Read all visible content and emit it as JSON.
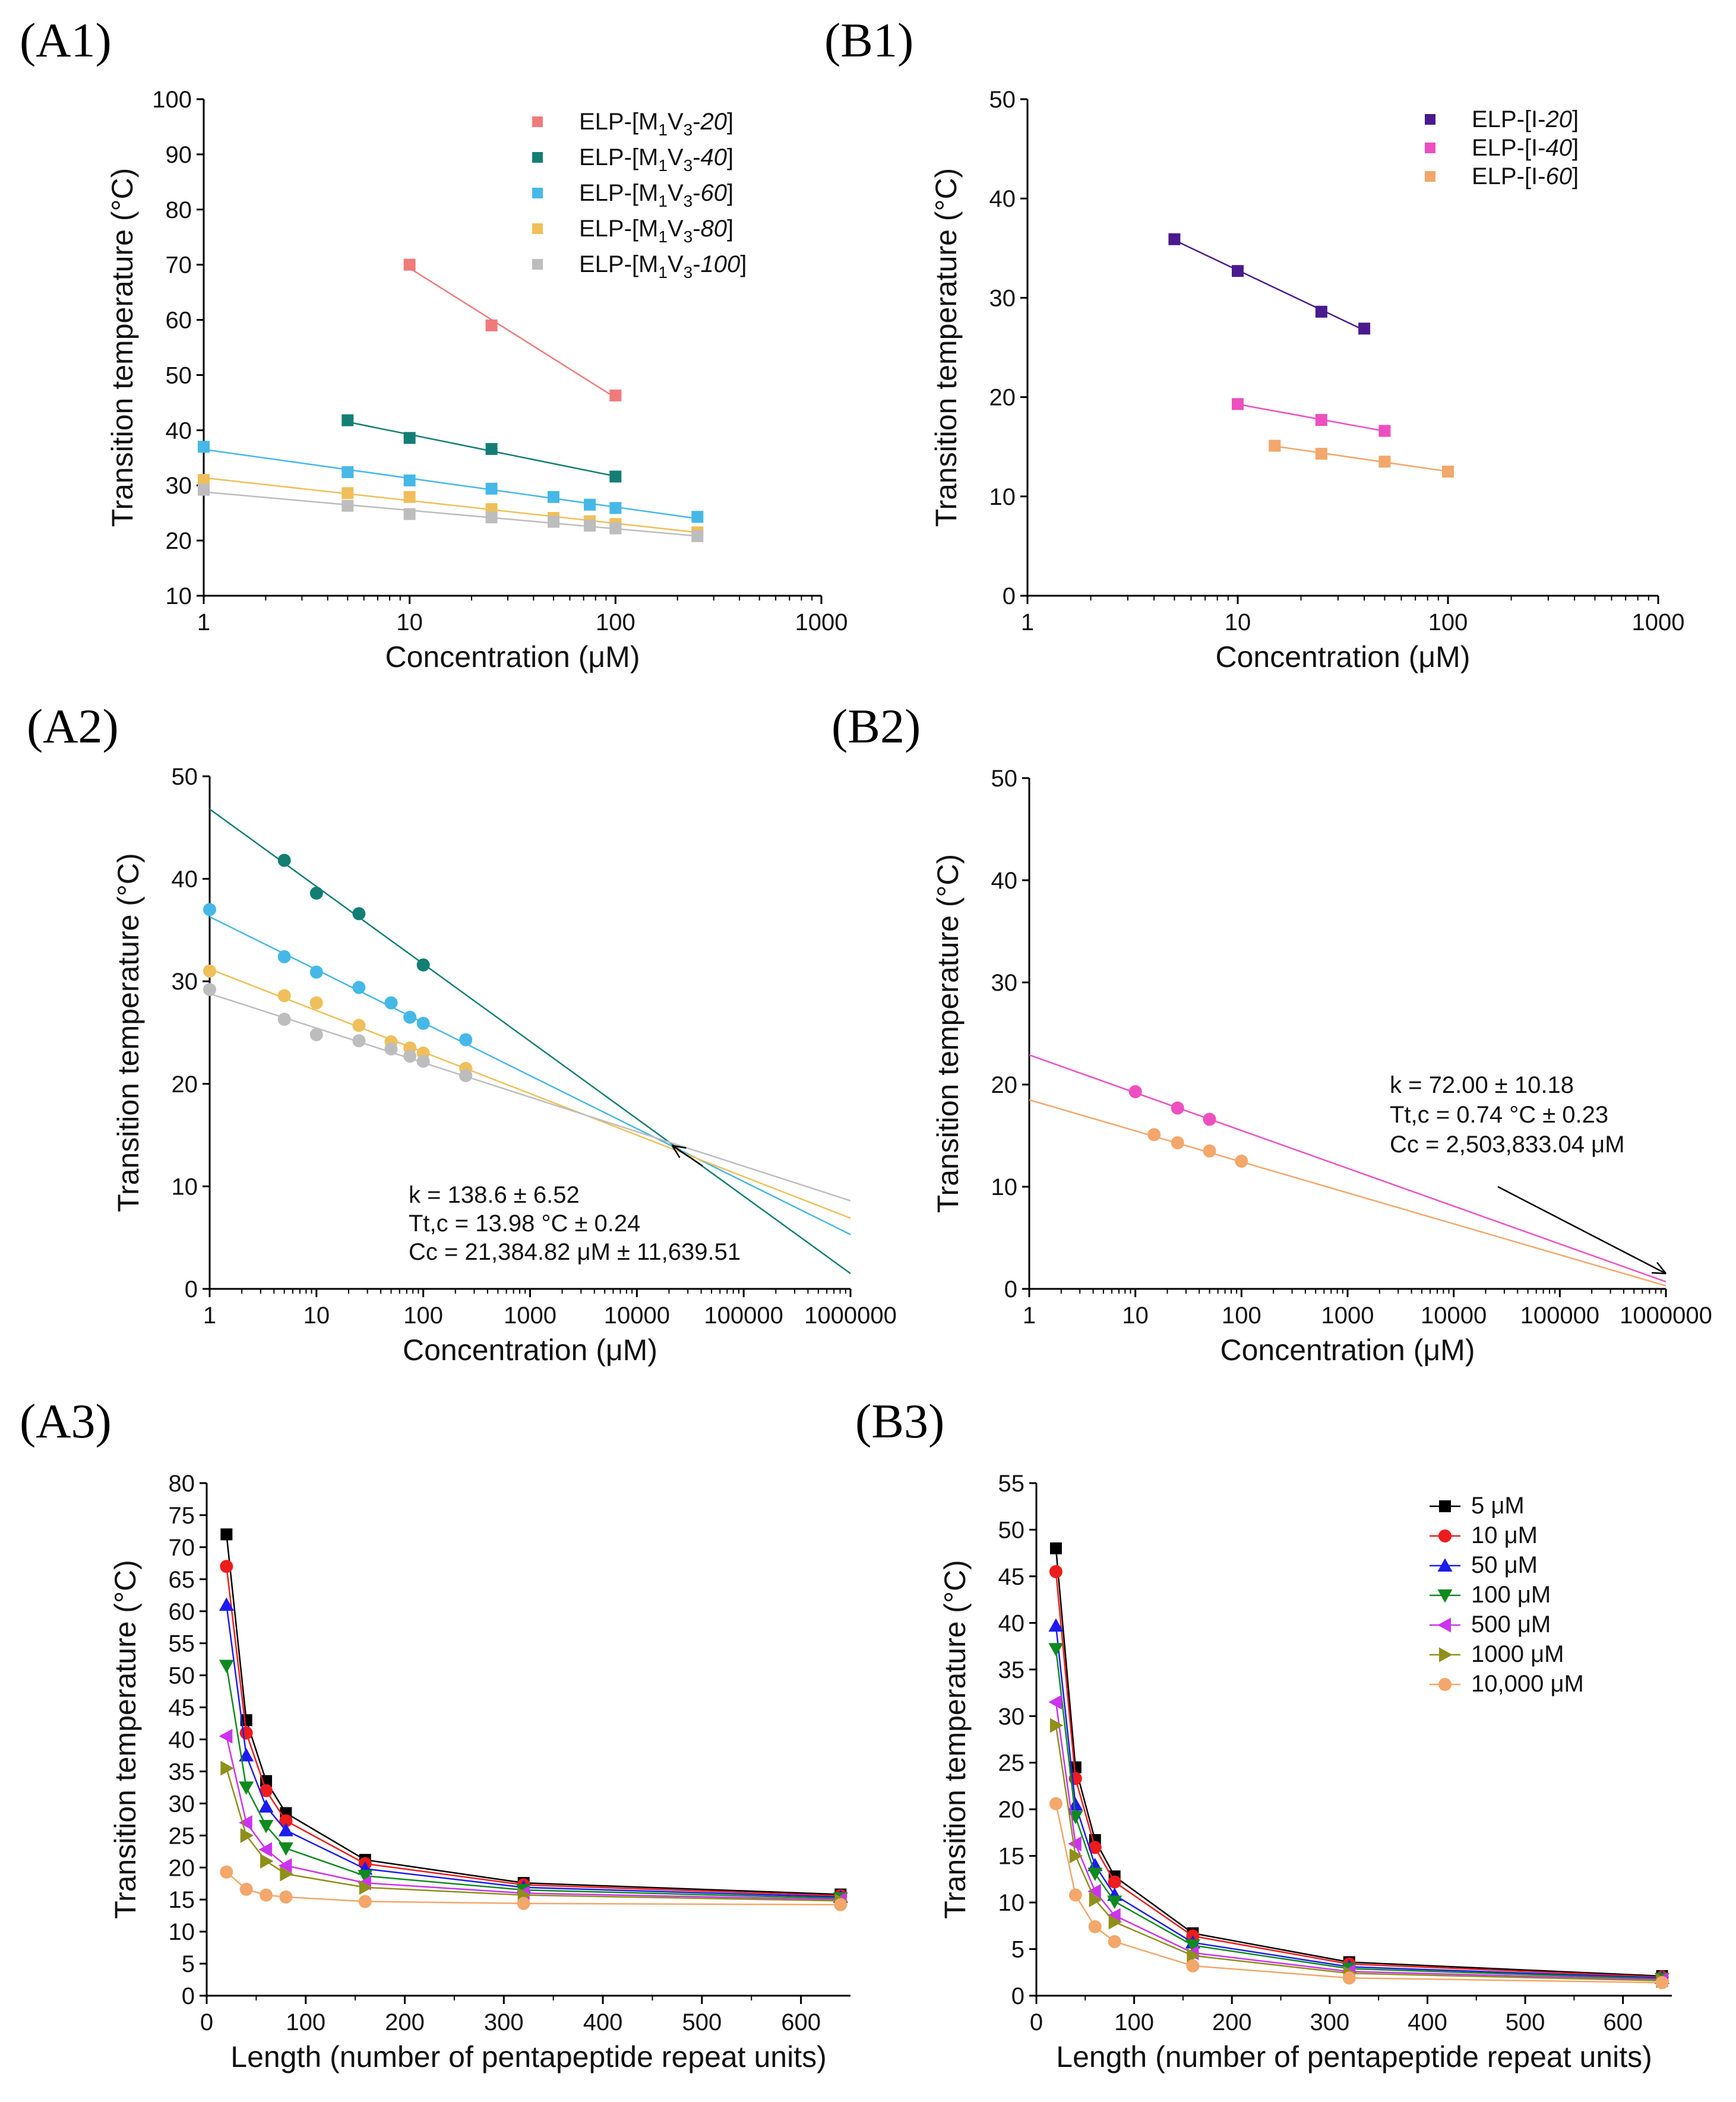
{
  "chart_data": [
    {
      "id": "A1",
      "panel_label": "(A1)",
      "type": "scatter",
      "xscale": "log",
      "xlim": [
        1,
        1000
      ],
      "ylim": [
        10,
        100
      ],
      "xticks": [
        1,
        10,
        100,
        1000
      ],
      "xtick_labels": [
        "1",
        "10",
        "100",
        "1000"
      ],
      "yticks": [
        10,
        20,
        30,
        40,
        50,
        60,
        70,
        80,
        90,
        100
      ],
      "xlabel": "Concentration (μM)",
      "ylabel": "Transition temperature (°C)",
      "legend_position": "top-right",
      "series": [
        {
          "name": "ELP-[M1V3-20]",
          "legend": [
            "ELP-[M",
            "1",
            "V",
            "3",
            "-",
            "20",
            "]"
          ],
          "color": "#f07b7b",
          "marker": "square",
          "fit": "line",
          "x": [
            10,
            25,
            100
          ],
          "y": [
            70,
            59,
            46.3
          ]
        },
        {
          "name": "ELP-[M1V3-40]",
          "legend": [
            "ELP-[M",
            "1",
            "V",
            "3",
            "-",
            "40",
            "]"
          ],
          "color": "#127e74",
          "marker": "square",
          "fit": "line",
          "x": [
            5,
            10,
            25,
            100
          ],
          "y": [
            41.8,
            38.6,
            36.6,
            31.6
          ]
        },
        {
          "name": "ELP-[M1V3-60]",
          "legend": [
            "ELP-[M",
            "1",
            "V",
            "3",
            "-",
            "60",
            "]"
          ],
          "color": "#46b8e8",
          "marker": "square",
          "fit": "line",
          "x": [
            1,
            5,
            10,
            25,
            50,
            75,
            100,
            250
          ],
          "y": [
            37,
            32.4,
            30.9,
            29.4,
            27.9,
            26.5,
            25.9,
            24.3
          ]
        },
        {
          "name": "ELP-[M1V3-80]",
          "legend": [
            "ELP-[M",
            "1",
            "V",
            "3",
            "-",
            "80",
            "]"
          ],
          "color": "#f0bf5a",
          "marker": "square",
          "fit": "line",
          "x": [
            1,
            5,
            10,
            25,
            50,
            75,
            100,
            250
          ],
          "y": [
            31,
            28.6,
            27.9,
            25.7,
            24.1,
            23.5,
            23,
            21.5
          ]
        },
        {
          "name": "ELP-[M1V3-100]",
          "legend": [
            "ELP-[M",
            "1",
            "V",
            "3",
            "-",
            "100",
            "]"
          ],
          "color": "#bdbdbd",
          "marker": "square",
          "fit": "line",
          "x": [
            1,
            5,
            10,
            25,
            50,
            75,
            100,
            250
          ],
          "y": [
            29.2,
            26.3,
            24.8,
            24.2,
            23.4,
            22.7,
            22.2,
            20.8
          ]
        }
      ]
    },
    {
      "id": "B1",
      "panel_label": "(B1)",
      "type": "scatter",
      "xscale": "log",
      "xlim": [
        1,
        1000
      ],
      "ylim": [
        0,
        50
      ],
      "xticks": [
        1,
        10,
        100,
        1000
      ],
      "xtick_labels": [
        "1",
        "10",
        "100",
        "1000"
      ],
      "yticks": [
        0,
        10,
        20,
        30,
        40,
        50
      ],
      "xlabel": "Concentration (μM)",
      "ylabel": "Transition temperature (°C)",
      "legend_position": "top-right",
      "series": [
        {
          "name": "ELP-[I-20]",
          "legend": [
            "ELP-[I-",
            "20",
            "]"
          ],
          "color": "#4b1a8e",
          "marker": "square",
          "fit": "line",
          "x": [
            5,
            10,
            25,
            40
          ],
          "y": [
            35.9,
            32.7,
            28.6,
            26.9
          ]
        },
        {
          "name": "ELP-[I-40]",
          "legend": [
            "ELP-[I-",
            "40",
            "]"
          ],
          "color": "#ee4fc0",
          "marker": "square",
          "fit": "line",
          "x": [
            10,
            25,
            50
          ],
          "y": [
            19.3,
            17.7,
            16.6
          ]
        },
        {
          "name": "ELP-[I-60]",
          "legend": [
            "ELP-[I-",
            "60",
            "]"
          ],
          "color": "#f3a76a",
          "marker": "square",
          "fit": "line",
          "x": [
            15,
            25,
            50,
            100
          ],
          "y": [
            15.1,
            14.3,
            13.5,
            12.5
          ]
        }
      ]
    },
    {
      "id": "A2",
      "panel_label": "(A2)",
      "type": "scatter",
      "xscale": "log",
      "xlim": [
        1,
        1000000
      ],
      "ylim": [
        0,
        50
      ],
      "xticks": [
        1,
        10,
        100,
        1000,
        10000,
        100000,
        1000000
      ],
      "xtick_labels": [
        "1",
        "10",
        "100",
        "1000",
        "10000",
        "100000",
        "1000000"
      ],
      "yticks": [
        0,
        10,
        20,
        30,
        40,
        50
      ],
      "xlabel": "Concentration (μM)",
      "ylabel": "Transition temperature (°C)",
      "series": [
        {
          "name": "ELP-[M1V3-40]",
          "color": "#127e74",
          "marker": "circle",
          "fit_line": [
            [
              1,
              46.8
            ],
            [
              1000000,
              1.5
            ]
          ],
          "x": [
            5,
            10,
            25,
            100
          ],
          "y": [
            41.8,
            38.6,
            36.6,
            31.6
          ]
        },
        {
          "name": "ELP-[M1V3-60]",
          "color": "#46b8e8",
          "marker": "circle",
          "fit_line": [
            [
              1,
              36.3
            ],
            [
              1000000,
              5.3
            ]
          ],
          "x": [
            1,
            5,
            10,
            25,
            50,
            75,
            100,
            250
          ],
          "y": [
            37,
            32.4,
            30.9,
            29.4,
            27.9,
            26.5,
            25.9,
            24.3
          ]
        },
        {
          "name": "ELP-[M1V3-80]",
          "color": "#f0bf5a",
          "marker": "circle",
          "fit_line": [
            [
              1,
              31.2
            ],
            [
              1000000,
              6.9
            ]
          ],
          "x": [
            1,
            5,
            10,
            25,
            50,
            75,
            100,
            250
          ],
          "y": [
            31,
            28.6,
            27.9,
            25.7,
            24.1,
            23.5,
            23,
            21.5
          ]
        },
        {
          "name": "ELP-[M1V3-100]",
          "color": "#bdbdbd",
          "marker": "circle",
          "fit_line": [
            [
              1,
              28.8
            ],
            [
              1000000,
              8.6
            ]
          ],
          "x": [
            1,
            5,
            10,
            25,
            50,
            75,
            100,
            250
          ],
          "y": [
            29.2,
            26.3,
            24.8,
            24.2,
            23.4,
            22.7,
            22.2,
            20.8
          ]
        }
      ],
      "annotation": {
        "lines": [
          "k = 138.6 ± 6.52",
          "Tt,c = 13.98 °C ± 0.24",
          "Cc = 21,384.82 μM ± 11,639.51"
        ],
        "arrow_to": [
          21384.82,
          13.98
        ]
      }
    },
    {
      "id": "B2",
      "panel_label": "(B2)",
      "type": "scatter",
      "xscale": "log",
      "xlim": [
        1,
        1000000
      ],
      "ylim": [
        0,
        50
      ],
      "xticks": [
        1,
        10,
        100,
        1000,
        10000,
        100000,
        1000000
      ],
      "xtick_labels": [
        "1",
        "10",
        "100",
        "1000",
        "10000",
        "100000",
        "1000000"
      ],
      "yticks": [
        0,
        10,
        20,
        30,
        40,
        50
      ],
      "xlabel": "Concentration (μM)",
      "ylabel": "Transition temperature (°C)",
      "series": [
        {
          "name": "ELP-[I-40]",
          "color": "#ee4fc0",
          "marker": "circle",
          "fit_line": [
            [
              1,
              22.9
            ],
            [
              1000000,
              0.7
            ]
          ],
          "x": [
            10,
            25,
            50
          ],
          "y": [
            19.3,
            17.7,
            16.6
          ]
        },
        {
          "name": "ELP-[I-60]",
          "color": "#f3a76a",
          "marker": "circle",
          "fit_line": [
            [
              1,
              18.5
            ],
            [
              1000000,
              0.3
            ]
          ],
          "x": [
            15,
            25,
            50,
            100
          ],
          "y": [
            15.1,
            14.3,
            13.5,
            12.5
          ]
        }
      ],
      "annotation": {
        "lines": [
          "k = 72.00 ± 10.18",
          "Tt,c = 0.74 °C ± 0.23",
          "Cc = 2,503,833.04 μM"
        ],
        "arrow_to": [
          1000000,
          1.5
        ]
      }
    },
    {
      "id": "A3",
      "panel_label": "(A3)",
      "type": "line",
      "xscale": "linear",
      "xlim": [
        0,
        650
      ],
      "ylim": [
        0,
        80
      ],
      "xticks": [
        0,
        100,
        200,
        300,
        400,
        500,
        600
      ],
      "xtick_labels": [
        "0",
        "100",
        "200",
        "300",
        "400",
        "500",
        "600"
      ],
      "yticks": [
        0,
        5,
        10,
        15,
        20,
        25,
        30,
        35,
        40,
        45,
        50,
        55,
        60,
        65,
        70,
        75,
        80
      ],
      "xlabel": "Length (number of pentapeptide repeat units)",
      "ylabel": "Transition temperature (°C)",
      "x": [
        20,
        40,
        60,
        80,
        160,
        320,
        640
      ],
      "series": [
        {
          "name": "5 μM",
          "color": "#000000",
          "marker": "square",
          "y": [
            72,
            43,
            33.5,
            28.5,
            21.2,
            17.6,
            15.8
          ]
        },
        {
          "name": "10 μM",
          "color": "#ee1c1c",
          "marker": "circle",
          "y": [
            67,
            41,
            32,
            27.3,
            20.6,
            17.3,
            15.6
          ]
        },
        {
          "name": "50 μM",
          "color": "#1c1cee",
          "marker": "triangle-up",
          "y": [
            61,
            37.5,
            29.5,
            25.8,
            19.8,
            16.9,
            15.4
          ]
        },
        {
          "name": "100 μM",
          "color": "#0f8a1e",
          "marker": "triangle-down",
          "y": [
            51.5,
            32.5,
            26.5,
            23,
            18.7,
            16.5,
            15.2
          ]
        },
        {
          "name": "500 μM",
          "color": "#cc33ee",
          "marker": "triangle-left",
          "y": [
            40.5,
            27,
            22.8,
            20.3,
            17.6,
            16,
            15
          ]
        },
        {
          "name": "1000 μM",
          "color": "#8f8f1a",
          "marker": "triangle-right",
          "y": [
            35.5,
            25,
            21,
            19,
            16.9,
            15.7,
            14.8
          ]
        },
        {
          "name": "10,000 μM",
          "color": "#f3a76a",
          "marker": "circle",
          "y": [
            19.3,
            16.6,
            15.7,
            15.4,
            14.7,
            14.4,
            14.2
          ]
        }
      ]
    },
    {
      "id": "B3",
      "panel_label": "(B3)",
      "type": "line",
      "xscale": "linear",
      "xlim": [
        0,
        650
      ],
      "ylim": [
        0,
        55
      ],
      "xticks": [
        0,
        100,
        200,
        300,
        400,
        500,
        600
      ],
      "xtick_labels": [
        "0",
        "100",
        "200",
        "300",
        "400",
        "500",
        "600"
      ],
      "yticks": [
        0,
        5,
        10,
        15,
        20,
        25,
        30,
        35,
        40,
        45,
        50,
        55
      ],
      "xlabel": "Length (number of pentapeptide repeat units)",
      "ylabel": "Transition temperature (°C)",
      "legend_position": "top-right",
      "x": [
        20,
        40,
        60,
        80,
        160,
        320,
        640
      ],
      "series": [
        {
          "name": "5 μM",
          "color": "#000000",
          "marker": "square",
          "y": [
            48,
            24.5,
            16.7,
            12.8,
            6.7,
            3.6,
            2.1
          ]
        },
        {
          "name": "10 μM",
          "color": "#ee1c1c",
          "marker": "circle",
          "y": [
            45.5,
            23.3,
            15.9,
            12.2,
            6.4,
            3.4,
            2
          ]
        },
        {
          "name": "50 μM",
          "color": "#1c1cee",
          "marker": "triangle-up",
          "y": [
            39.7,
            20.5,
            14,
            10.8,
            5.7,
            3.1,
            1.9
          ]
        },
        {
          "name": "100 μM",
          "color": "#0f8a1e",
          "marker": "triangle-down",
          "y": [
            37.2,
            19.2,
            13.1,
            10.1,
            5.4,
            2.9,
            1.8
          ]
        },
        {
          "name": "500 μM",
          "color": "#cc33ee",
          "marker": "triangle-left",
          "y": [
            31.5,
            16.3,
            11.2,
            8.6,
            4.6,
            2.6,
            1.7
          ]
        },
        {
          "name": "1000 μM",
          "color": "#8f8f1a",
          "marker": "triangle-right",
          "y": [
            29,
            15,
            10.3,
            7.9,
            4.3,
            2.4,
            1.6
          ]
        },
        {
          "name": "10,000 μM",
          "color": "#f3a76a",
          "marker": "circle",
          "y": [
            20.6,
            10.8,
            7.4,
            5.8,
            3.2,
            1.9,
            1.4
          ]
        }
      ]
    }
  ]
}
